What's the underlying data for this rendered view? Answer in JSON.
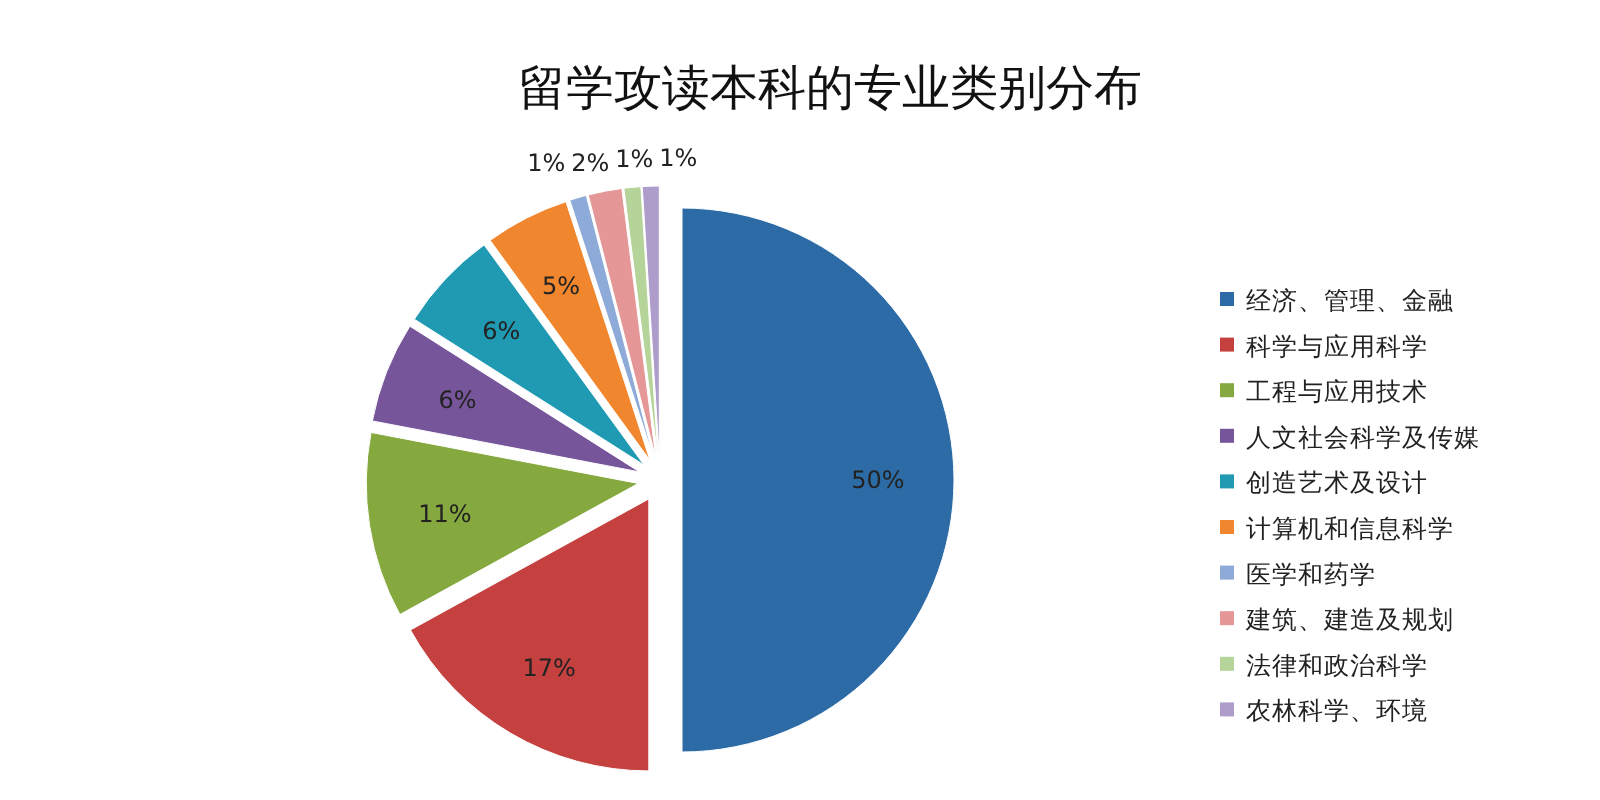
{
  "chart_data": {
    "type": "pie",
    "title": "留学攻读本科的专业类别分布",
    "categories": [
      "经济、管理、金融",
      "科学与应用科学",
      "工程与应用技术",
      "人文社会科学及传媒",
      "创造艺术及设计",
      "计算机和信息科学",
      "医学和药学",
      "建筑、建造及规划",
      "法律和政治科学",
      "农林科学、环境"
    ],
    "values": [
      50,
      17,
      11,
      6,
      6,
      5,
      1,
      2,
      1,
      1
    ],
    "colors": [
      "#2c6ba5",
      "#c4413f",
      "#85a83f",
      "#76559a",
      "#1f9ab2",
      "#f0862e",
      "#8daad8",
      "#e59696",
      "#b5d49a",
      "#ae9dca"
    ],
    "value_labels": [
      "50%",
      "17%",
      "11%",
      "6%",
      "6%",
      "5%",
      "1%",
      "2%",
      "1%",
      "1%"
    ],
    "legend": "right"
  }
}
